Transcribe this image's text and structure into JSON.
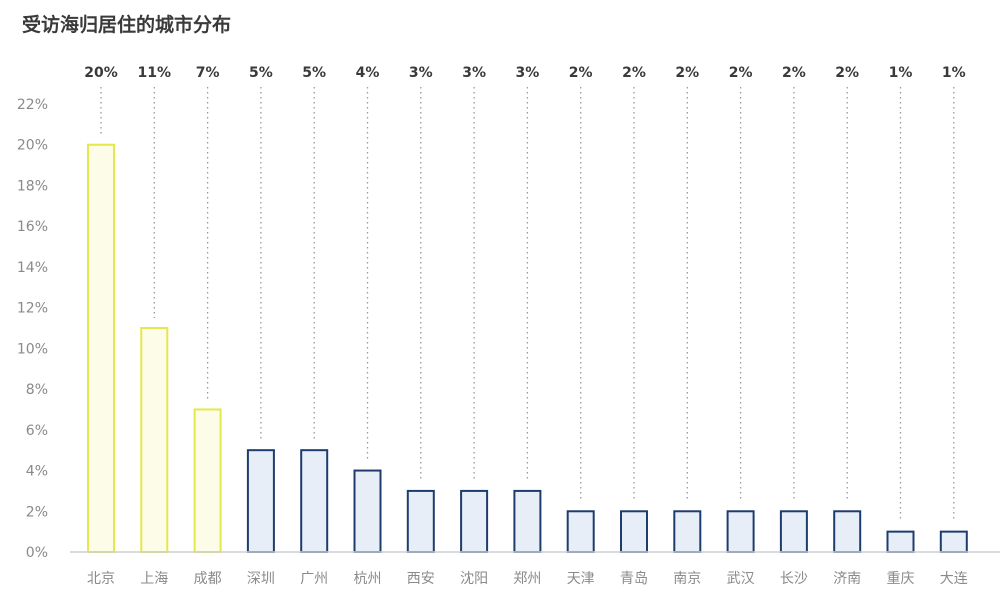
{
  "chart_data": {
    "type": "bar",
    "title": "受访海归居住的城市分布",
    "categories": [
      "北京",
      "上海",
      "成都",
      "深圳",
      "广州",
      "杭州",
      "西安",
      "沈阳",
      "郑州",
      "天津",
      "青岛",
      "南京",
      "武汉",
      "长沙",
      "济南",
      "重庆",
      "大连"
    ],
    "values": [
      20,
      11,
      7,
      5,
      5,
      4,
      3,
      3,
      3,
      2,
      2,
      2,
      2,
      2,
      2,
      1,
      1
    ],
    "data_labels": [
      "20%",
      "11%",
      "7%",
      "5%",
      "5%",
      "4%",
      "3%",
      "3%",
      "3%",
      "2%",
      "2%",
      "2%",
      "2%",
      "2%",
      "2%",
      "1%",
      "1%"
    ],
    "yticks": [
      0,
      2,
      4,
      6,
      8,
      10,
      12,
      14,
      16,
      18,
      20,
      22
    ],
    "ytick_labels": [
      "0%",
      "2%",
      "4%",
      "6%",
      "8%",
      "10%",
      "12%",
      "14%",
      "16%",
      "18%",
      "20%",
      "22%"
    ],
    "ylim": [
      0,
      22
    ],
    "grid": false,
    "highlight_count": 3,
    "colors": {
      "highlight_fill": "#fdfce8",
      "highlight_stroke": "#e4e84a",
      "normal_fill": "#e8eef7",
      "normal_stroke": "#1f3c6e",
      "dotted_line": "#9a9a9a",
      "axis": "#cfcfcf"
    }
  }
}
